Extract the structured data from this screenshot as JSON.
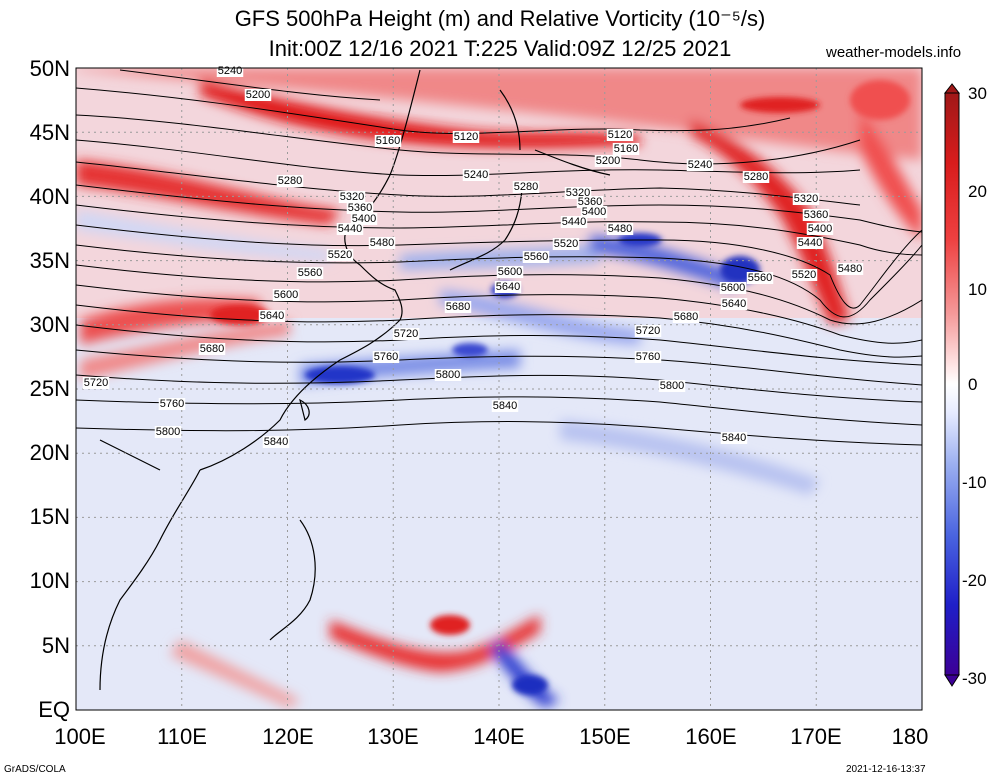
{
  "title_line1": "GFS 500hPa Height (m) and Relative Vorticity (10⁻⁵/s)",
  "title_line2": "Init:00Z 12/16 2021  T:225  Valid:09Z 12/25 2021",
  "site": "weather-models.info",
  "footer_left": "GrADS/COLA",
  "footer_right": "2021-12-16-13:37",
  "latitude_labels": [
    "50N",
    "45N",
    "40N",
    "35N",
    "30N",
    "25N",
    "20N",
    "15N",
    "10N",
    "5N",
    "EQ"
  ],
  "longitude_labels": [
    "100E",
    "110E",
    "120E",
    "130E",
    "140E",
    "150E",
    "160E",
    "170E",
    "180"
  ],
  "colorbar": {
    "tick_labels": [
      "30",
      "20",
      "10",
      "0",
      "-10",
      "-20",
      "-30"
    ],
    "colors": [
      "#3c0096",
      "#1f1fc8",
      "#4a64e0",
      "#9aaef0",
      "#e6ebff",
      "#ffffff",
      "#ffe6e6",
      "#f59a9a",
      "#ee4040",
      "#d81c1c",
      "#a01818"
    ]
  },
  "colors": {
    "positive_vorticity": "#e8262a",
    "negative_vorticity": "#3040d0",
    "weak_negative": "#dfe3f7",
    "contour": "#000000",
    "grid": "#9a9a9a"
  },
  "contour_labels": [
    "5120",
    "5160",
    "5200",
    "5240",
    "5280",
    "5320",
    "5360",
    "5400",
    "5440",
    "5480",
    "5520",
    "5560",
    "5600",
    "5640",
    "5680",
    "5720",
    "5760",
    "5800",
    "5840"
  ]
}
